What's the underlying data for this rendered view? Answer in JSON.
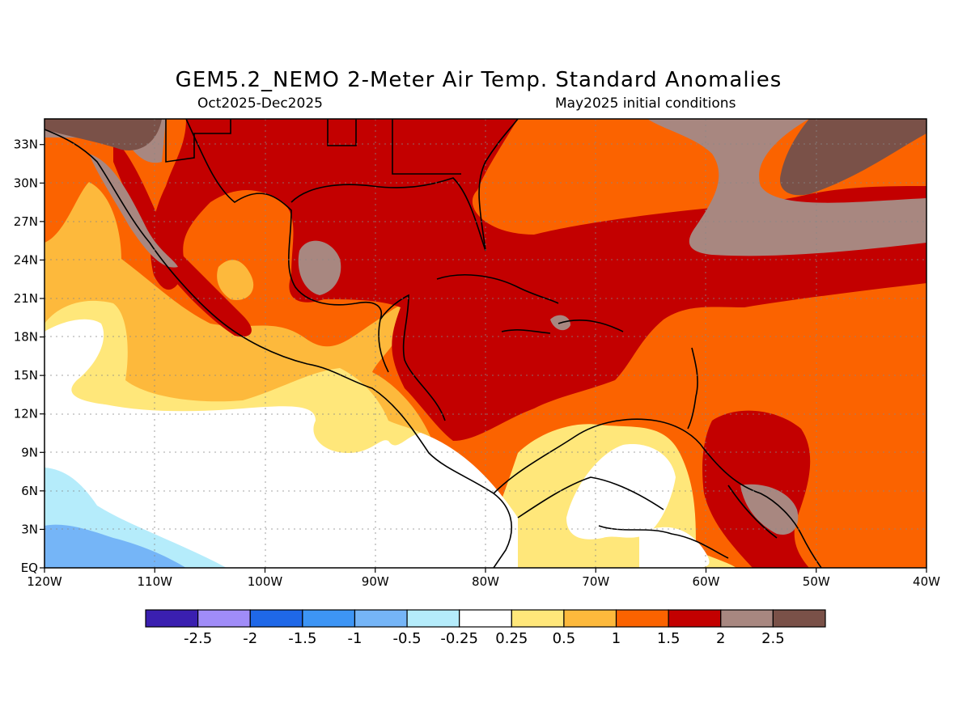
{
  "title": "GEM5.2_NEMO 2-Meter Air Temp. Standard Anomalies",
  "subtitle_left": "Oct2025-Dec2025",
  "subtitle_right": "May2025 initial conditions",
  "map": {
    "lon_range": [
      -120,
      -40
    ],
    "lat_range": [
      0,
      35
    ],
    "lon_ticks": [
      {
        "value": -120,
        "label": "120W"
      },
      {
        "value": -110,
        "label": "110W"
      },
      {
        "value": -100,
        "label": "100W"
      },
      {
        "value": -90,
        "label": "90W"
      },
      {
        "value": -80,
        "label": "80W"
      },
      {
        "value": -70,
        "label": "70W"
      },
      {
        "value": -60,
        "label": "60W"
      },
      {
        "value": -50,
        "label": "50W"
      },
      {
        "value": -40,
        "label": "40W"
      }
    ],
    "lat_ticks": [
      {
        "value": 0,
        "label": "EQ"
      },
      {
        "value": 3,
        "label": "3N"
      },
      {
        "value": 6,
        "label": "6N"
      },
      {
        "value": 9,
        "label": "9N"
      },
      {
        "value": 12,
        "label": "12N"
      },
      {
        "value": 15,
        "label": "15N"
      },
      {
        "value": 18,
        "label": "18N"
      },
      {
        "value": 21,
        "label": "21N"
      },
      {
        "value": 24,
        "label": "24N"
      },
      {
        "value": 27,
        "label": "27N"
      },
      {
        "value": 30,
        "label": "30N"
      },
      {
        "value": 33,
        "label": "33N"
      }
    ],
    "grid": "dotted"
  },
  "legend": {
    "colors": [
      "#3a1fb0",
      "#a08cf8",
      "#1f68e8",
      "#3d95f5",
      "#75b5f7",
      "#b5ecfb",
      "#ffffff",
      "#ffe77a",
      "#fdb93c",
      "#fb6300",
      "#c30000",
      "#a88780",
      "#7a5148"
    ],
    "labels": [
      "-2.5",
      "-2",
      "-1.5",
      "-1",
      "-0.5",
      "-0.25",
      "0.25",
      "0.5",
      "1",
      "1.5",
      "2",
      "2.5"
    ]
  }
}
